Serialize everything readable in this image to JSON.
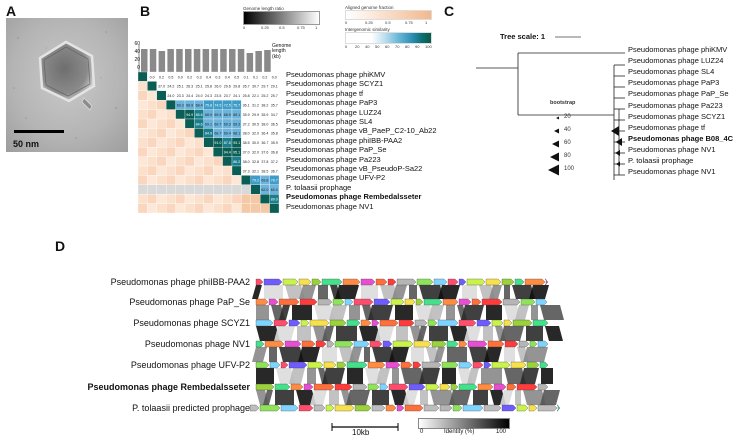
{
  "panels": {
    "a": "A",
    "b": "B",
    "c": "C",
    "d": "D"
  },
  "panel_a": {
    "scale_bar_label": "50 nm"
  },
  "panel_b": {
    "legend_genome_length_title": "Genome length ratio",
    "legend_genome_length_ticks": [
      "0",
      "0.25",
      "0.5",
      "0.75",
      "1"
    ],
    "legend_aligned_title": "Aligned genome fraction",
    "legend_aligned_ticks": [
      "0",
      "0.25",
      "0.5",
      "0.75",
      "1"
    ],
    "legend_intergenomic_title": "Intergenomic similarity",
    "legend_intergenomic_ticks": [
      "0",
      "20",
      "40",
      "50",
      "60",
      "70",
      "80",
      "90",
      "100"
    ],
    "bar_axis_label": "Genome length (kb)",
    "bar_axis_ticks": [
      "60",
      "40",
      "20",
      "0"
    ],
    "rows": [
      "Pseudomonas phage phiKMV",
      "Pseudomonas phage SCYZ1",
      "Pseudomonas phage tf",
      "Pseudomonas phage PaP3",
      "Pseudomonas phage LUZ24",
      "Pseudomonas phage SL4",
      "Pseudomonas phage vB_PaeP_C2-10_Ab22",
      "Pseudomonas phage phiIBB-PAA2",
      "Pseudomonas phage PaP_Se",
      "Pseudomonas phage Pa223",
      "Pseudomonas phage vB_PseudoP-Sa22",
      "Pseudomonas phage UFV-P2",
      "P. tolaasii prophage",
      "Pseudomonas phage Rembedalsseter",
      "Pseudomonas phage NV1"
    ],
    "bold_row": "Pseudomonas phage Rembedalsseter",
    "matrix_values": [
      [
        "",
        "0.0",
        "0.2",
        "0.5",
        "0.0",
        "0.2",
        "0.3",
        "0.4",
        "0.3",
        "0.4",
        "0.5",
        "0.1",
        "0.1",
        "0.2",
        "0.0"
      ],
      [
        "",
        "",
        "37.0",
        "24.2",
        "25.1",
        "26.3",
        "25.1",
        "25.8",
        "26.0",
        "29.6",
        "29.8",
        "26.7",
        "30.7",
        "29.7",
        "29.1"
      ],
      [
        "",
        "",
        "",
        "24.0",
        "23.3",
        "24.4",
        "24.0",
        "24.3",
        "23.5",
        "23.7",
        "24.1",
        "25.8",
        "22.1",
        "25.2",
        "25.7"
      ],
      [
        "",
        "",
        "",
        "",
        "69.3",
        "69.9",
        "68.4",
        "75.8",
        "74.5",
        "72.5",
        "75.7",
        "36.1",
        "31.2",
        "38.2",
        "35.7"
      ],
      [
        "",
        "",
        "",
        "",
        "",
        "94.9",
        "85.6",
        "68.9",
        "69.4",
        "68.9",
        "69.1",
        "35.9",
        "29.9",
        "35.9",
        "34.7"
      ],
      [
        "",
        "",
        "",
        "",
        "",
        "",
        "84.6",
        "69.1",
        "69.7",
        "69.3",
        "69.3",
        "37.2",
        "30.5",
        "38.0",
        "36.5"
      ],
      [
        "",
        "",
        "",
        "",
        "",
        "",
        "",
        "84.9",
        "68.7",
        "69.4",
        "68.1",
        "38.0",
        "32.0",
        "36.4",
        "35.8"
      ],
      [
        "",
        "",
        "",
        "",
        "",
        "",
        "",
        "",
        "91.0",
        "87.8",
        "93.1",
        "38.5",
        "30.0",
        "36.7",
        "35.9"
      ],
      [
        "",
        "",
        "",
        "",
        "",
        "",
        "",
        "",
        "",
        "94.4",
        "95.1",
        "37.0",
        "32.0",
        "37.6",
        "36.8"
      ],
      [
        "",
        "",
        "",
        "",
        "",
        "",
        "",
        "",
        "",
        "",
        "86.2",
        "38.0",
        "32.8",
        "37.8",
        "37.2"
      ],
      [
        "",
        "",
        "",
        "",
        "",
        "",
        "",
        "",
        "",
        "",
        "",
        "37.3",
        "32.1",
        "38.5",
        "36.7"
      ],
      [
        "",
        "",
        "",
        "",
        "",
        "",
        "",
        "",
        "",
        "",
        "",
        "",
        "79.2",
        "69.8",
        "78.7"
      ],
      [
        "",
        "",
        "",
        "",
        "",
        "",
        "",
        "",
        "",
        "",
        "",
        "",
        "",
        "62.0",
        "60.0"
      ],
      [
        "",
        "",
        "",
        "",
        "",
        "",
        "",
        "",
        "",
        "",
        "",
        "",
        "",
        "",
        "89.0"
      ],
      [
        "",
        "",
        "",
        "",
        "",
        "",
        "",
        "",
        "",
        "",
        "",
        "",
        "",
        "",
        ""
      ]
    ]
  },
  "panel_c": {
    "tree_scale_label": "Tree scale: 1",
    "bootstrap_title": "bootstrap",
    "bootstrap_values": [
      "20",
      "40",
      "60",
      "80",
      "100"
    ],
    "leaves": [
      "Pseudomonas phage phiKMV",
      "Pseudomonas phage LUZ24",
      "Pseudomonas phage SL4",
      "Pseudomonas phage PaP3",
      "Pseudomonas phage PaP_Se",
      "Pseudomonas phage Pa223",
      "Pseudomonas phage SCYZ1",
      "Pseudomonas phage tf",
      "Pseudomonas phage B08_4C",
      "Pseudomonas phage NV1",
      "P. tolaasii prophage",
      "Pseudomonas phage NV1"
    ],
    "bold_leaf": "Pseudomonas phage B08_4C"
  },
  "panel_d": {
    "genomes": [
      "Pseudomonas phage phiIBB-PAA2",
      "Pseudomonas phage PaP_Se",
      "Pseudomonas phage SCYZ1",
      "Pseudomonas phage NV1",
      "Pseudomonas phage UFV-P2",
      "Pseudomonas phage Rembedalsseter",
      "P. tolaasii predicted prophage"
    ],
    "bold_genome": "Pseudomonas phage Rembedalsseter",
    "scale_label": "10kb",
    "identity_label": "Identity (%)",
    "identity_ticks": [
      "0",
      "100"
    ]
  }
}
